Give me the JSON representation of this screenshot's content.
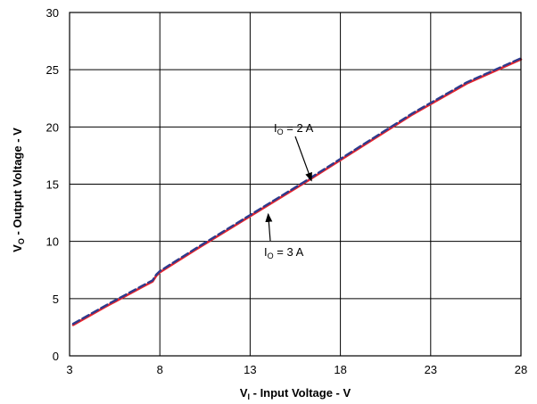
{
  "chart_data": {
    "type": "line",
    "xlim": [
      3,
      28
    ],
    "ylim": [
      0,
      30
    ],
    "x_ticks": [
      "3",
      "8",
      "13",
      "18",
      "23",
      "28"
    ],
    "y_ticks": [
      "0",
      "5",
      "10",
      "15",
      "20",
      "25",
      "30"
    ],
    "grid": true,
    "xlabel": {
      "main": "V",
      "sub": "I",
      "rest": " - Input Voltage - V"
    },
    "ylabel": {
      "main": "V",
      "sub": "O",
      "rest": " - Output Voltage - V"
    },
    "series": [
      {
        "color": "#2e3a8c",
        "style": "dashed",
        "x": [
          3.2,
          5,
          7,
          7.6,
          7.8,
          8,
          10,
          13,
          16,
          19,
          22,
          25,
          28
        ],
        "y": [
          2.8,
          4.4,
          6.1,
          6.6,
          7.1,
          7.4,
          9.4,
          12.3,
          15.2,
          18.2,
          21.2,
          23.9,
          26.0
        ]
      },
      {
        "color": "#e8242c",
        "style": "solid",
        "x": [
          3.2,
          5,
          7,
          7.6,
          7.8,
          8,
          10,
          13,
          16,
          19,
          22,
          25,
          28
        ],
        "y": [
          2.7,
          4.3,
          6.0,
          6.5,
          7.0,
          7.3,
          9.3,
          12.2,
          15.1,
          18.1,
          21.1,
          23.8,
          25.9
        ]
      }
    ],
    "annotations": [
      {
        "text_main": "I",
        "text_sub": "O",
        "text_rest": " = 2 A",
        "target_x": 16.4,
        "target_y": 15.3
      },
      {
        "text_main": "I",
        "text_sub": "O",
        "text_rest": " = 3 A",
        "target_x": 14.0,
        "target_y": 12.4
      }
    ]
  }
}
